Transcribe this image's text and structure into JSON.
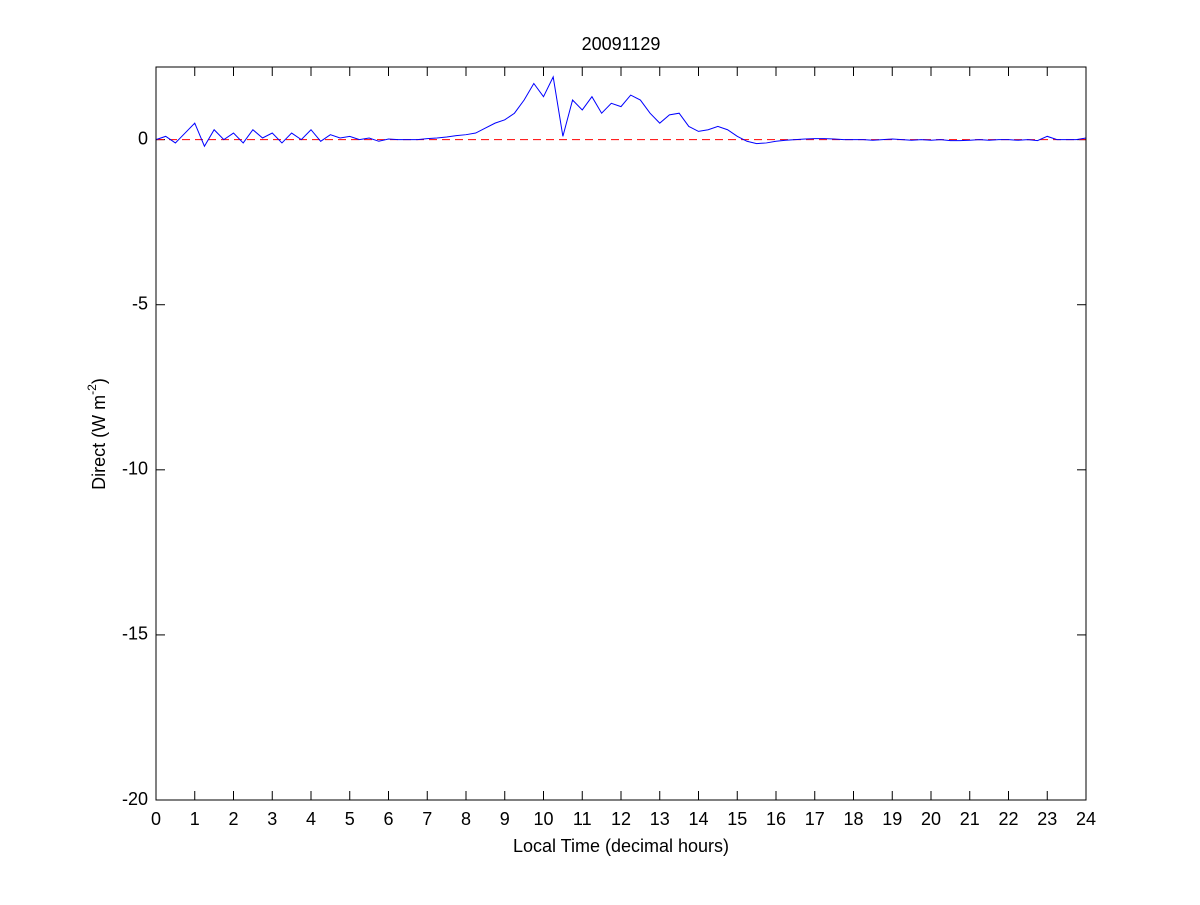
{
  "chart_data": {
    "type": "line",
    "title": "20091129",
    "x_label": "Local Time (decimal hours)",
    "y_label_parts": [
      "Direct (W m",
      "-2",
      ")"
    ],
    "x": [
      0,
      0.25,
      0.5,
      0.75,
      1,
      1.25,
      1.5,
      1.75,
      2,
      2.25,
      2.5,
      2.75,
      3,
      3.25,
      3.5,
      3.75,
      4,
      4.25,
      4.5,
      4.75,
      5,
      5.25,
      5.5,
      5.75,
      6,
      6.25,
      6.5,
      6.75,
      7,
      7.25,
      7.5,
      7.75,
      8,
      8.25,
      8.5,
      8.75,
      9,
      9.25,
      9.5,
      9.75,
      10,
      10.25,
      10.5,
      10.75,
      11,
      11.25,
      11.5,
      11.75,
      12,
      12.25,
      12.5,
      12.75,
      13,
      13.25,
      13.5,
      13.75,
      14,
      14.25,
      14.5,
      14.75,
      15,
      15.25,
      15.5,
      15.75,
      16,
      16.25,
      16.5,
      16.75,
      17,
      17.25,
      17.5,
      17.75,
      18,
      18.25,
      18.5,
      18.75,
      19,
      19.25,
      19.5,
      19.75,
      20,
      20.25,
      20.5,
      20.75,
      21,
      21.25,
      21.5,
      21.75,
      22,
      22.25,
      22.5,
      22.75,
      23,
      23.25,
      23.5,
      23.75,
      24
    ],
    "series": [
      {
        "color": "#0000ff",
        "values": [
          0,
          0.1,
          -0.1,
          0.2,
          0.5,
          -0.2,
          0.3,
          0,
          0.2,
          -0.1,
          0.3,
          0.05,
          0.2,
          -0.1,
          0.2,
          0,
          0.3,
          -0.05,
          0.15,
          0.05,
          0.1,
          0,
          0.05,
          -0.05,
          0.02,
          0,
          0,
          0,
          0.03,
          0.05,
          0.08,
          0.12,
          0.15,
          0.2,
          0.35,
          0.5,
          0.6,
          0.8,
          1.2,
          1.7,
          1.3,
          1.9,
          0.1,
          1.2,
          0.9,
          1.3,
          0.8,
          1.1,
          1,
          1.35,
          1.2,
          0.8,
          0.5,
          0.75,
          0.8,
          0.4,
          0.25,
          0.3,
          0.4,
          0.3,
          0.1,
          -0.05,
          -0.12,
          -0.1,
          -0.05,
          -0.02,
          0,
          0.02,
          0.03,
          0.03,
          0.02,
          0,
          0,
          0,
          -0.02,
          0,
          0.02,
          0,
          -0.02,
          0,
          -0.02,
          0,
          -0.03,
          -0.03,
          -0.02,
          0,
          -0.02,
          0,
          0,
          -0.02,
          0,
          -0.03,
          0.1,
          0,
          0,
          0,
          0.05
        ]
      }
    ],
    "reference_line": {
      "value": 0,
      "color": "#ff0000"
    },
    "xlim": [
      0,
      24
    ],
    "ylim": [
      -20,
      2.2
    ],
    "xticks": [
      0,
      1,
      2,
      3,
      4,
      5,
      6,
      7,
      8,
      9,
      10,
      11,
      12,
      13,
      14,
      15,
      16,
      17,
      18,
      19,
      20,
      21,
      22,
      23,
      24
    ],
    "yticks": [
      -20,
      -15,
      -10,
      -5,
      0
    ]
  }
}
